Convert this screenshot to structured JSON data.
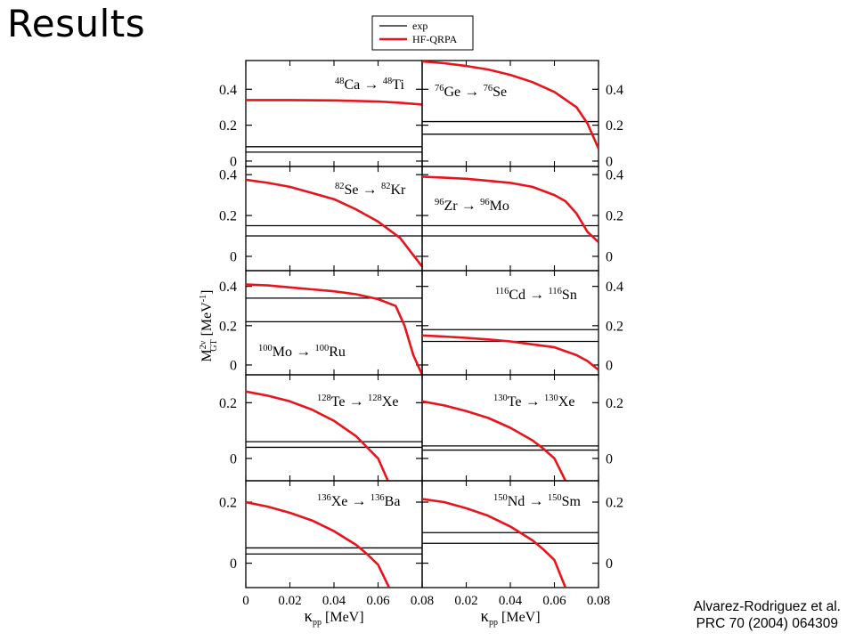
{
  "slide": {
    "title": "Results",
    "citation_line1": "Alvarez-Rodriguez et al.",
    "citation_line2": "PRC 70 (2004) 064309"
  },
  "colors": {
    "exp": "#000000",
    "hf_qrpa": "#e8141c",
    "axes": "#000000"
  },
  "chart_data": {
    "type": "line",
    "legend": {
      "placement": "top-center",
      "entries": [
        {
          "name": "exp",
          "color": "#000000"
        },
        {
          "name": "HF-QRPA",
          "color": "#e8141c"
        }
      ]
    },
    "ylabel": {
      "main": "M",
      "sup": "2ν",
      "sub": "GT",
      "unit_open": "[MeV",
      "unit_sup": "-1",
      "unit_close": "]"
    },
    "xlabel": {
      "main": "κ",
      "sub": "pp",
      "unit": "[MeV]"
    },
    "xticks": [
      "0",
      "0.02",
      "0.04",
      "0.06",
      "0.08"
    ],
    "xlim": [
      0,
      0.08
    ],
    "panels": [
      {
        "reaction": {
          "a1": "48",
          "s1": "Ca",
          "a2": "48",
          "s2": "Ti"
        },
        "ylim": [
          -0.03,
          0.56
        ],
        "yticks": [
          "0",
          "0.2",
          "0.4"
        ],
        "exp": [
          0.05,
          0.08
        ],
        "hf_qrpa": {
          "x": [
            0,
            0.02,
            0.04,
            0.06,
            0.07,
            0.08
          ],
          "y": [
            0.34,
            0.34,
            0.338,
            0.332,
            0.325,
            0.315
          ]
        }
      },
      {
        "reaction": {
          "a1": "76",
          "s1": "Ge",
          "a2": "76",
          "s2": "Se"
        },
        "ylim": [
          -0.03,
          0.56
        ],
        "yticks": [
          "0",
          "0.2",
          "0.4"
        ],
        "exp": [
          0.15,
          0.22
        ],
        "hf_qrpa": {
          "x": [
            0,
            0.01,
            0.02,
            0.03,
            0.04,
            0.05,
            0.06,
            0.07,
            0.075,
            0.08
          ],
          "y": [
            0.555,
            0.545,
            0.53,
            0.51,
            0.48,
            0.44,
            0.385,
            0.3,
            0.21,
            0.07
          ]
        }
      },
      {
        "reaction": {
          "a1": "82",
          "s1": "Se",
          "a2": "82",
          "s2": "Kr"
        },
        "ylim": [
          -0.07,
          0.44
        ],
        "yticks": [
          "0",
          "0.2",
          "0.4"
        ],
        "exp": [
          0.1,
          0.15
        ],
        "hf_qrpa": {
          "x": [
            0,
            0.01,
            0.02,
            0.03,
            0.04,
            0.05,
            0.06,
            0.07,
            0.075,
            0.08
          ],
          "y": [
            0.375,
            0.36,
            0.34,
            0.31,
            0.28,
            0.23,
            0.17,
            0.09,
            0.02,
            -0.05
          ]
        }
      },
      {
        "reaction": {
          "a1": "96",
          "s1": "Zr",
          "a2": "96",
          "s2": "Mo"
        },
        "ylim": [
          -0.07,
          0.44
        ],
        "yticks": [
          "0",
          "0.2",
          "0.4"
        ],
        "exp": [
          0.1,
          0.15
        ],
        "hf_qrpa": {
          "x": [
            0,
            0.01,
            0.02,
            0.03,
            0.04,
            0.05,
            0.06,
            0.065,
            0.07,
            0.075,
            0.08
          ],
          "y": [
            0.39,
            0.385,
            0.38,
            0.37,
            0.36,
            0.34,
            0.3,
            0.27,
            0.21,
            0.12,
            0.07
          ]
        }
      },
      {
        "reaction": {
          "a1": "100",
          "s1": "Mo",
          "a2": "100",
          "s2": "Ru"
        },
        "ylim": [
          -0.05,
          0.48
        ],
        "yticks": [
          "0",
          "0.2",
          "0.4"
        ],
        "exp": [
          0.22,
          0.34
        ],
        "hf_qrpa": {
          "x": [
            0,
            0.01,
            0.02,
            0.03,
            0.04,
            0.05,
            0.06,
            0.068,
            0.072,
            0.076,
            0.08
          ],
          "y": [
            0.41,
            0.405,
            0.395,
            0.385,
            0.375,
            0.36,
            0.335,
            0.3,
            0.2,
            0.05,
            -0.05
          ]
        }
      },
      {
        "reaction": {
          "a1": "116",
          "s1": "Cd",
          "a2": "116",
          "s2": "Sn"
        },
        "ylim": [
          -0.05,
          0.48
        ],
        "yticks": [
          "0",
          "0.2",
          "0.4"
        ],
        "exp": [
          0.12,
          0.18
        ],
        "hf_qrpa": {
          "x": [
            0,
            0.01,
            0.02,
            0.03,
            0.04,
            0.05,
            0.06,
            0.07,
            0.075,
            0.08
          ],
          "y": [
            0.15,
            0.145,
            0.138,
            0.13,
            0.12,
            0.105,
            0.09,
            0.05,
            0.02,
            -0.025
          ]
        }
      },
      {
        "reaction": {
          "a1": "128",
          "s1": "Te",
          "a2": "128",
          "s2": "Xe"
        },
        "ylim": [
          -0.08,
          0.3
        ],
        "yticks": [
          "0",
          "0.2"
        ],
        "exp": [
          0.04,
          0.06
        ],
        "hf_qrpa": {
          "x": [
            0,
            0.01,
            0.02,
            0.03,
            0.04,
            0.05,
            0.055,
            0.06,
            0.065
          ],
          "y": [
            0.24,
            0.225,
            0.205,
            0.175,
            0.135,
            0.08,
            0.04,
            0.0,
            -0.09
          ]
        }
      },
      {
        "reaction": {
          "a1": "130",
          "s1": "Te",
          "a2": "130",
          "s2": "Xe"
        },
        "ylim": [
          -0.08,
          0.3
        ],
        "yticks": [
          "0",
          "0.2"
        ],
        "exp": [
          0.03,
          0.045
        ],
        "hf_qrpa": {
          "x": [
            0,
            0.01,
            0.02,
            0.03,
            0.04,
            0.05,
            0.055,
            0.06,
            0.065
          ],
          "y": [
            0.205,
            0.19,
            0.17,
            0.145,
            0.11,
            0.065,
            0.035,
            0.0,
            -0.08
          ]
        }
      },
      {
        "reaction": {
          "a1": "136",
          "s1": "Xe",
          "a2": "136",
          "s2": "Ba"
        },
        "ylim": [
          -0.08,
          0.27
        ],
        "yticks": [
          "0",
          "0.2"
        ],
        "exp": [
          0.03,
          0.05
        ],
        "hf_qrpa": {
          "x": [
            0,
            0.01,
            0.02,
            0.03,
            0.04,
            0.05,
            0.055,
            0.06,
            0.065
          ],
          "y": [
            0.2,
            0.185,
            0.165,
            0.14,
            0.105,
            0.06,
            0.03,
            -0.005,
            -0.08
          ]
        }
      },
      {
        "reaction": {
          "a1": "150",
          "s1": "Nd",
          "a2": "150",
          "s2": "Sm"
        },
        "ylim": [
          -0.08,
          0.27
        ],
        "yticks": [
          "0",
          "0.2"
        ],
        "exp": [
          0.065,
          0.1
        ],
        "hf_qrpa": {
          "x": [
            0,
            0.01,
            0.02,
            0.03,
            0.04,
            0.05,
            0.055,
            0.06,
            0.065
          ],
          "y": [
            0.21,
            0.2,
            0.18,
            0.155,
            0.12,
            0.075,
            0.045,
            0.01,
            -0.08
          ]
        }
      }
    ]
  }
}
